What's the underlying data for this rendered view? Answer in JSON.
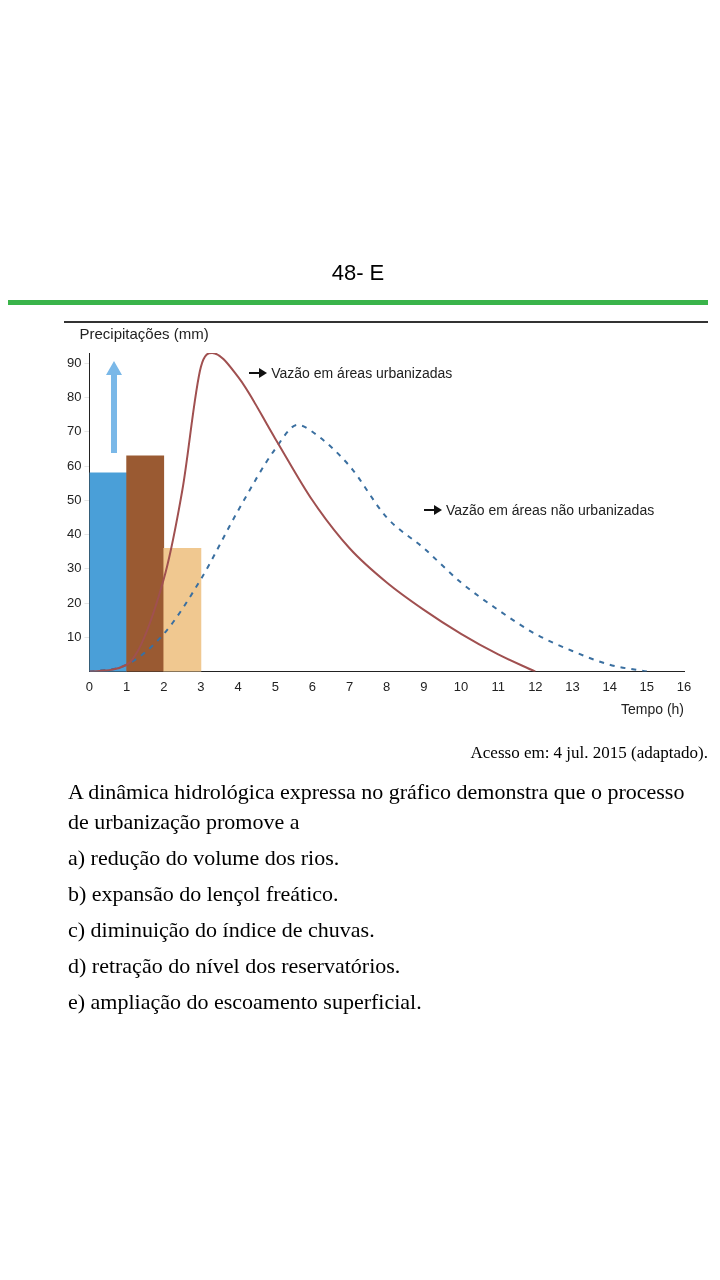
{
  "chart_data": {
    "type": "line",
    "title": "48- E",
    "ylabel": "Precipitações (mm)",
    "xlabel": "Tempo (h)",
    "xlim": [
      0,
      16
    ],
    "xticks": [
      0,
      1,
      2,
      3,
      4,
      5,
      6,
      7,
      8,
      9,
      10,
      11,
      12,
      13,
      14,
      15,
      16
    ],
    "ylim": [
      0,
      93
    ],
    "yticks": [
      10,
      20,
      30,
      40,
      50,
      60,
      70,
      80,
      90
    ],
    "grid": false,
    "legend": false,
    "series": [
      {
        "type": "histogram",
        "bins": [
          0,
          1,
          2,
          3
        ],
        "values": [
          58,
          63,
          36
        ],
        "colors": [
          "#4a9fd8",
          "#9a5a32",
          "#f0c890"
        ]
      },
      {
        "name": "Vazão em áreas urbanizadas",
        "color": "#a05050",
        "line_style": "solid",
        "x": [
          0,
          1,
          2,
          2.5,
          3,
          3.3,
          4,
          5,
          6,
          7,
          8,
          9,
          10,
          11,
          12
        ],
        "values": [
          0,
          2,
          27,
          53,
          89,
          93,
          86,
          68,
          50,
          36,
          26,
          18,
          11,
          5,
          0
        ]
      },
      {
        "name": "Vazão em áreas não urbanizadas",
        "color": "#3a6fa0",
        "line_style": "dashed",
        "x": [
          0,
          1,
          2,
          3,
          4,
          5,
          5.6,
          6,
          7,
          8,
          9,
          10,
          11,
          12,
          13,
          14,
          15
        ],
        "values": [
          0,
          2,
          11,
          27,
          47,
          65,
          72,
          70,
          60,
          45,
          36,
          26,
          18,
          11,
          6,
          2,
          0
        ]
      }
    ],
    "annotations": [
      "Acesso em: 4 jul. 2015 (adaptado).",
      "A dinâmica hidrológica expressa no gráfico demonstra que o processo de urbanização promove a",
      "a) redução do volume dos rios.",
      "b) expansão do lençol freático.",
      "c) diminuição do índice de chuvas.",
      "d) retração do nível dos reservatórios.",
      "e) ampliação do escoamento superficial."
    ]
  }
}
